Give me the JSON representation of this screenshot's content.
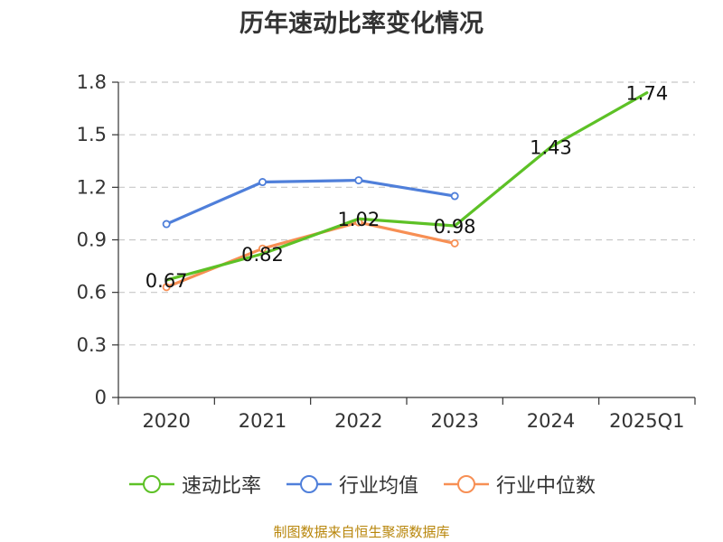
{
  "chart_data": {
    "type": "line",
    "title": "历年速动比率变化情况",
    "categories": [
      "2020",
      "2021",
      "2022",
      "2023",
      "2024",
      "2025Q1"
    ],
    "ylim": [
      0,
      1.8
    ],
    "yticks": [
      0,
      0.3,
      0.6,
      0.9,
      1.2,
      1.5,
      1.8
    ],
    "ytick_labels": [
      "0",
      "0.3",
      "0.6",
      "0.9",
      "1.2",
      "1.5",
      "1.8"
    ],
    "grid": true,
    "legend_position": "bottom",
    "series": [
      {
        "name": "速动比率",
        "color": "#5dc126",
        "values": [
          0.67,
          0.82,
          1.02,
          0.98,
          1.43,
          1.74
        ],
        "labels": [
          "0.67",
          "0.82",
          "1.02",
          "0.98",
          "1.43",
          "1.74"
        ],
        "show_labels": true
      },
      {
        "name": "行业均值",
        "color": "#4f7fda",
        "values": [
          0.99,
          1.23,
          1.24,
          1.15,
          null,
          null
        ],
        "show_labels": false
      },
      {
        "name": "行业中位数",
        "color": "#f78f54",
        "values": [
          0.63,
          0.85,
          1.0,
          0.88,
          null,
          null
        ],
        "show_labels": false
      }
    ]
  },
  "source_note": "制图数据来自恒生聚源数据库"
}
